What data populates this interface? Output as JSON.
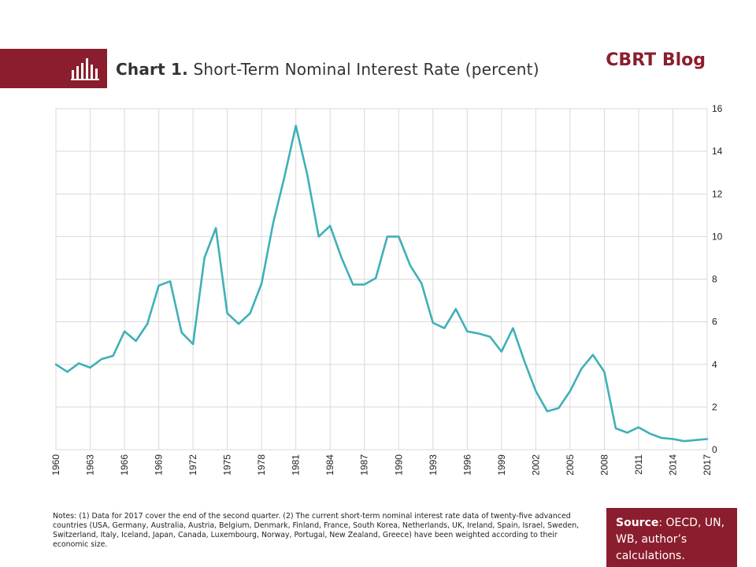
{
  "header": {
    "chart_number": "Chart 1.",
    "chart_title": "Short-Term Nominal Interest Rate (percent)",
    "blog_name": "CBRT Blog",
    "logo_icon": "bar-chart-icon"
  },
  "notes": "Notes: (1) Data for 2017 cover the end of the second quarter. (2) The current short-term nominal interest rate data of twenty-five advanced countries (USA, Germany, Australia, Austria, Belgium, Denmark, Finland, France, South Korea, Netherlands, UK, Ireland, Spain, Israel, Sweden, Switzerland, Italy, Iceland, Japan, Canada, Luxembourg, Norway, Portugal, New Zealand, Greece) have been weighted according to their economic size.",
  "source": {
    "label": "Source",
    "text": ": OECD, UN, WB, author’s calculations."
  },
  "colors": {
    "brand": "#8b1e2e",
    "line": "#3fb0b8",
    "grid": "#d9d9d9"
  },
  "chart_data": {
    "type": "line",
    "title": "",
    "xlabel": "",
    "ylabel": "",
    "ylim": [
      0,
      16
    ],
    "xlim": [
      1960,
      2017
    ],
    "y_ticks": [
      "0",
      "2",
      "4",
      "6",
      "8",
      "10",
      "12",
      "14",
      "16"
    ],
    "x_tick_labels": [
      "1960",
      "1963",
      "1966",
      "1969",
      "1972",
      "1975",
      "1978",
      "1981",
      "1984",
      "1987",
      "1990",
      "1993",
      "1996",
      "1999",
      "2002",
      "2005",
      "2008",
      "2011",
      "2014",
      "2017"
    ],
    "grid": true,
    "legend": "none",
    "y_axis_side": "right",
    "series": [
      {
        "x": [
          1960,
          1961,
          1962,
          1963,
          1964,
          1965,
          1966,
          1967,
          1968,
          1969,
          1970,
          1971,
          1972,
          1973,
          1974,
          1975,
          1976,
          1977,
          1978,
          1979,
          1980,
          1981,
          1982,
          1983,
          1984,
          1985,
          1986,
          1987,
          1988,
          1989,
          1990,
          1991,
          1992,
          1993,
          1994,
          1995,
          1996,
          1997,
          1998,
          1999,
          2000,
          2001,
          2002,
          2003,
          2004,
          2005,
          2006,
          2007,
          2008,
          2009,
          2010,
          2011,
          2012,
          2013,
          2014,
          2015,
          2016,
          2017
        ],
        "values": [
          4.0,
          3.65,
          4.05,
          3.85,
          4.25,
          4.4,
          5.55,
          5.1,
          5.9,
          7.7,
          7.9,
          5.5,
          4.95,
          9.0,
          10.4,
          6.4,
          5.9,
          6.4,
          7.8,
          10.6,
          12.8,
          15.2,
          12.9,
          10.0,
          10.5,
          9.0,
          7.75,
          7.75,
          8.05,
          10.0,
          10.0,
          8.65,
          7.8,
          5.95,
          5.7,
          6.6,
          5.55,
          5.45,
          5.3,
          4.6,
          5.7,
          4.15,
          2.75,
          1.8,
          1.95,
          2.75,
          3.8,
          4.45,
          3.65,
          1.0,
          0.8,
          1.05,
          0.75,
          0.55,
          0.5,
          0.4,
          0.45,
          0.5
        ]
      }
    ]
  }
}
